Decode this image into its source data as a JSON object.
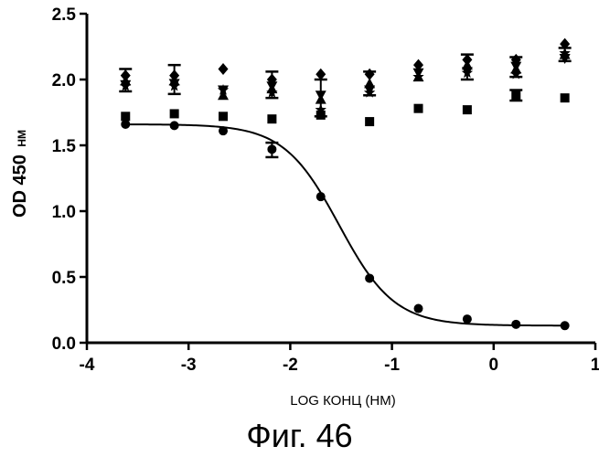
{
  "chart_data": {
    "type": "scatter",
    "xlabel": "LOG КОНЦ (НМ)",
    "ylabel": "OD 450",
    "ylabel_unit": "НМ",
    "xlim": [
      -4,
      1
    ],
    "ylim": [
      0,
      2.5
    ],
    "xticks": [
      "-4",
      "-3",
      "-2",
      "-1",
      "0",
      "1"
    ],
    "yticks": [
      "0.0",
      "0.5",
      "1.0",
      "1.5",
      "2.0",
      "2.5"
    ],
    "grid": false,
    "legend": "none",
    "series": [
      {
        "marker": "circle",
        "fit_curve": {
          "bottom": 0.13,
          "top": 1.66,
          "logEC50": -1.52,
          "hill": -1.6
        },
        "points": [
          {
            "x": -3.62,
            "y": 1.66
          },
          {
            "x": -3.14,
            "y": 1.65
          },
          {
            "x": -2.66,
            "y": 1.61
          },
          {
            "x": -2.18,
            "y": 1.47
          },
          {
            "x": -1.7,
            "y": 1.11
          },
          {
            "x": -1.22,
            "y": 0.49
          },
          {
            "x": -0.74,
            "y": 0.26
          },
          {
            "x": -0.26,
            "y": 0.18
          },
          {
            "x": 0.22,
            "y": 0.14
          },
          {
            "x": 0.7,
            "y": 0.13
          }
        ]
      },
      {
        "marker": "square",
        "points": [
          {
            "x": -3.62,
            "y": 1.72
          },
          {
            "x": -3.14,
            "y": 1.74
          },
          {
            "x": -2.66,
            "y": 1.72
          },
          {
            "x": -2.18,
            "y": 1.7
          },
          {
            "x": -1.7,
            "y": 1.73
          },
          {
            "x": -1.22,
            "y": 1.68
          },
          {
            "x": -0.74,
            "y": 1.78
          },
          {
            "x": -0.26,
            "y": 1.77
          },
          {
            "x": 0.22,
            "y": 1.88
          },
          {
            "x": 0.7,
            "y": 1.86
          }
        ]
      },
      {
        "marker": "diamond",
        "points": [
          {
            "x": -3.62,
            "y": 2.03
          },
          {
            "x": -3.14,
            "y": 2.03
          },
          {
            "x": -2.66,
            "y": 2.08
          },
          {
            "x": -2.18,
            "y": 2.0
          },
          {
            "x": -1.7,
            "y": 2.04
          },
          {
            "x": -1.22,
            "y": 2.04
          },
          {
            "x": -0.74,
            "y": 2.11
          },
          {
            "x": -0.26,
            "y": 2.15
          },
          {
            "x": 0.22,
            "y": 2.15
          },
          {
            "x": 0.7,
            "y": 2.27
          }
        ]
      },
      {
        "marker": "triangle",
        "points": [
          {
            "x": -3.62,
            "y": 1.99
          },
          {
            "x": -3.14,
            "y": 1.99
          },
          {
            "x": -2.66,
            "y": 1.88
          },
          {
            "x": -2.18,
            "y": 1.93
          },
          {
            "x": -1.7,
            "y": 1.85
          },
          {
            "x": -1.22,
            "y": 1.97
          },
          {
            "x": -0.74,
            "y": 2.02
          },
          {
            "x": -0.26,
            "y": 2.11
          },
          {
            "x": 0.22,
            "y": 2.08
          },
          {
            "x": 0.7,
            "y": 2.19
          }
        ]
      },
      {
        "marker": "inverted-triangle",
        "points": [
          {
            "x": -3.62,
            "y": 1.96
          },
          {
            "x": -3.14,
            "y": 1.97
          },
          {
            "x": -2.66,
            "y": 1.92
          },
          {
            "x": -2.18,
            "y": 1.95
          },
          {
            "x": -1.7,
            "y": 1.88
          },
          {
            "x": -1.22,
            "y": 1.92
          },
          {
            "x": -0.74,
            "y": 2.05
          },
          {
            "x": -0.26,
            "y": 2.06
          },
          {
            "x": 0.22,
            "y": 2.1
          },
          {
            "x": 0.7,
            "y": 2.16
          }
        ]
      },
      {
        "marker": "star",
        "points": [
          {
            "x": -3.62,
            "y": 1.95
          },
          {
            "x": -3.14,
            "y": 1.95
          },
          {
            "x": -2.66,
            "y": 1.92
          },
          {
            "x": -2.18,
            "y": 1.9
          },
          {
            "x": -1.7,
            "y": 1.77
          },
          {
            "x": -1.22,
            "y": 1.9
          },
          {
            "x": -0.74,
            "y": 2.02
          },
          {
            "x": -0.26,
            "y": 2.05
          },
          {
            "x": 0.22,
            "y": 2.04
          },
          {
            "x": 0.7,
            "y": 2.2
          }
        ]
      }
    ],
    "error_bars": [
      {
        "x": -3.62,
        "low": 1.91,
        "high": 2.08
      },
      {
        "x": -3.14,
        "low": 1.89,
        "high": 2.11
      },
      {
        "x": -2.18,
        "low": 1.86,
        "high": 2.06
      },
      {
        "x": -2.18,
        "low": 1.41,
        "high": 1.52
      },
      {
        "x": -1.7,
        "low": 1.72,
        "high": 2.0
      },
      {
        "x": -1.22,
        "low": 1.88,
        "high": 2.06
      },
      {
        "x": -0.26,
        "low": 2.0,
        "high": 2.19
      },
      {
        "x": 0.22,
        "low": 2.02,
        "high": 2.17
      },
      {
        "x": 0.7,
        "low": 2.14,
        "high": 2.24
      },
      {
        "x": 0.22,
        "low": 1.84,
        "high": 1.92
      }
    ]
  },
  "caption": "Фиг. 46"
}
